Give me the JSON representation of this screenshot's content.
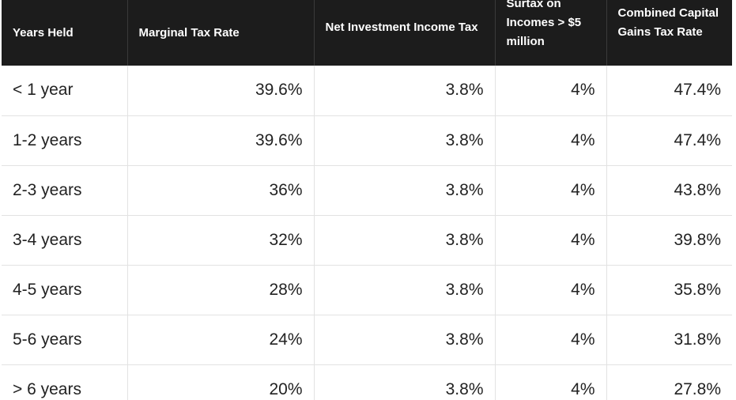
{
  "table": {
    "headers": [
      "Years Held",
      "Marginal Tax Rate",
      "Net Investment Income Tax",
      "Surtax on Incomes > $5 million",
      "Combined Capital Gains Tax Rate"
    ],
    "rows": [
      [
        "< 1 year",
        "39.6%",
        "3.8%",
        "4%",
        "47.4%"
      ],
      [
        "1-2 years",
        "39.6%",
        "3.8%",
        "4%",
        "47.4%"
      ],
      [
        "2-3 years",
        "36%",
        "3.8%",
        "4%",
        "43.8%"
      ],
      [
        "3-4 years",
        "32%",
        "3.8%",
        "4%",
        "39.8%"
      ],
      [
        "4-5 years",
        "28%",
        "3.8%",
        "4%",
        "35.8%"
      ],
      [
        "5-6 years",
        "24%",
        "3.8%",
        "4%",
        "31.8%"
      ],
      [
        "> 6 years",
        "20%",
        "3.8%",
        "4%",
        "27.8%"
      ]
    ]
  },
  "colors": {
    "header_bg": "#1c1c1c",
    "header_text": "#ffffff",
    "cell_text": "#222222",
    "grid_line": "#e2e2e2"
  }
}
